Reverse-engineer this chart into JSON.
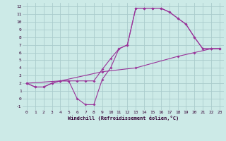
{
  "title": "",
  "xlabel": "Windchill (Refroidissement éolien,°C)",
  "bg_color": "#cceae7",
  "grid_color": "#aacccc",
  "line_color": "#993399",
  "xlim": [
    -0.5,
    23.5
  ],
  "ylim": [
    -1.5,
    12.5
  ],
  "xticks": [
    0,
    1,
    2,
    3,
    4,
    5,
    6,
    7,
    8,
    9,
    10,
    11,
    12,
    13,
    14,
    15,
    16,
    17,
    18,
    19,
    20,
    21,
    22,
    23
  ],
  "yticks": [
    -1,
    0,
    1,
    2,
    3,
    4,
    5,
    6,
    7,
    8,
    9,
    10,
    11,
    12
  ],
  "line1_x": [
    0,
    1,
    2,
    3,
    4,
    5,
    6,
    7,
    8,
    9,
    10,
    11,
    12,
    13,
    14,
    15,
    16,
    17,
    18,
    19,
    20,
    21,
    22,
    23
  ],
  "line1_y": [
    2.0,
    1.5,
    1.5,
    2.0,
    2.3,
    2.3,
    0.0,
    -0.8,
    -0.8,
    2.5,
    4.0,
    6.5,
    7.0,
    11.8,
    11.8,
    11.8,
    11.8,
    11.3,
    10.5,
    9.7,
    8.0,
    6.5,
    6.5,
    6.5
  ],
  "line2_x": [
    0,
    1,
    2,
    3,
    4,
    5,
    6,
    7,
    8,
    9,
    10,
    11,
    12,
    13,
    14,
    15,
    16,
    17,
    18,
    19,
    20,
    21,
    22,
    23
  ],
  "line2_y": [
    2.0,
    1.5,
    1.5,
    2.0,
    2.3,
    2.3,
    2.3,
    2.3,
    2.3,
    3.8,
    5.2,
    6.5,
    7.0,
    11.8,
    11.8,
    11.8,
    11.8,
    11.3,
    10.5,
    9.7,
    8.0,
    6.5,
    6.5,
    6.5
  ],
  "line3_x": [
    0,
    4,
    9,
    13,
    18,
    20,
    22,
    23
  ],
  "line3_y": [
    2.0,
    2.3,
    3.5,
    4.0,
    5.5,
    6.0,
    6.5,
    6.5
  ],
  "tick_fontsize": 4.5,
  "xlabel_fontsize": 5.0,
  "marker_size": 2.0,
  "line_width": 0.8
}
